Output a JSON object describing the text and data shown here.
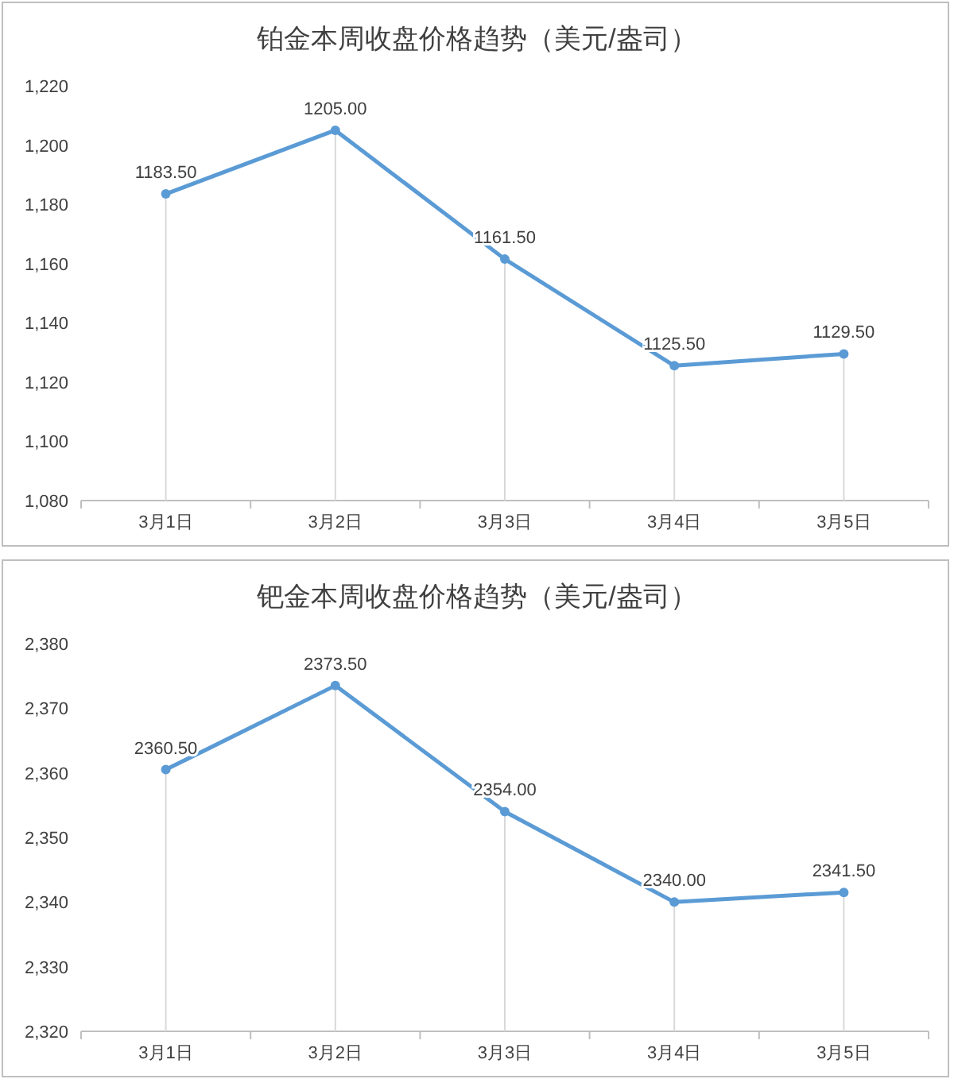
{
  "chart_data": [
    {
      "type": "line",
      "title": "铂金本周收盘价格趋势（美元/盎司）",
      "categories": [
        "3月1日",
        "3月2日",
        "3月3日",
        "3月4日",
        "3月5日"
      ],
      "series": [
        {
          "color": "#5b9bd5",
          "values": [
            1183.5,
            1205,
            1161.5,
            1125.5,
            1129.5
          ]
        }
      ],
      "ylim": [
        1080,
        1220
      ],
      "yticks": [
        {
          "value": 1080,
          "label": "1,080"
        },
        {
          "value": 1100,
          "label": "1,100"
        },
        {
          "value": 1120,
          "label": "1,120"
        },
        {
          "value": 1140,
          "label": "1,140"
        },
        {
          "value": 1160,
          "label": "1,160"
        },
        {
          "value": 1180,
          "label": "1,180"
        },
        {
          "value": 1200,
          "label": "1,200"
        },
        {
          "value": 1220,
          "label": "1,220"
        }
      ],
      "value_labels": [
        "1183.50",
        "1205.00",
        "1161.50",
        "1125.50",
        "1129.50"
      ],
      "marker": "circle",
      "line_style": "solid",
      "grid": "x"
    },
    {
      "type": "line",
      "title": "钯金本周收盘价格趋势（美元/盎司）",
      "categories": [
        "3月1日",
        "3月2日",
        "3月3日",
        "3月4日",
        "3月5日"
      ],
      "series": [
        {
          "color": "#5b9bd5",
          "values": [
            2360.5,
            2373.5,
            2354,
            2340,
            2341.5
          ]
        }
      ],
      "ylim": [
        2320,
        2380
      ],
      "yticks": [
        {
          "value": 2320,
          "label": "2,320"
        },
        {
          "value": 2330,
          "label": "2,330"
        },
        {
          "value": 2340,
          "label": "2,340"
        },
        {
          "value": 2350,
          "label": "2,350"
        },
        {
          "value": 2360,
          "label": "2,360"
        },
        {
          "value": 2370,
          "label": "2,370"
        },
        {
          "value": 2380,
          "label": "2,380"
        }
      ],
      "value_labels": [
        "2360.50",
        "2373.50",
        "2354.00",
        "2340.00",
        "2341.50"
      ],
      "marker": "circle",
      "line_style": "solid",
      "grid": "x"
    }
  ]
}
